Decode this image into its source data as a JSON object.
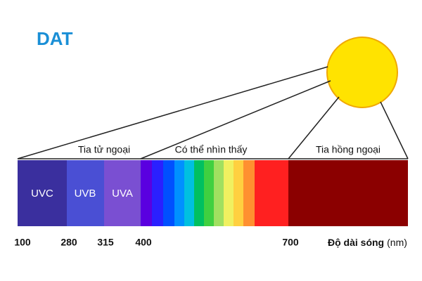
{
  "logo": "DAT",
  "regions": [
    {
      "label": "Tia tử ngoại"
    },
    {
      "label": "Có thể nhìn thấy"
    },
    {
      "label": "Tia hồng ngoại"
    }
  ],
  "bands": [
    {
      "label": "UVC"
    },
    {
      "label": "UVB"
    },
    {
      "label": "UVA"
    }
  ],
  "wavelength_labels": [
    "100",
    "280",
    "315",
    "400",
    "700"
  ],
  "axis_label": {
    "text": "Độ dài sóng",
    "unit": "(nm)"
  }
}
